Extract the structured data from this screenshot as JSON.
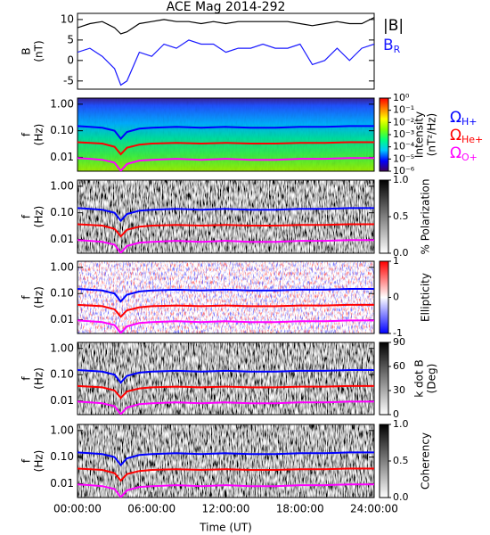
{
  "chart_data": [
    {
      "type": "line",
      "title": "ACE Mag 2014-292",
      "ylabel": [
        "B",
        "(nT)"
      ],
      "xlim": [
        0,
        24
      ],
      "ylim": [
        -7,
        11.5
      ],
      "yticks": [
        -5,
        0,
        5,
        10
      ],
      "x": [
        0,
        1,
        2,
        3,
        3.5,
        4,
        5,
        6,
        7,
        8,
        9,
        10,
        11,
        12,
        13,
        14,
        15,
        16,
        17,
        18,
        19,
        20,
        21,
        22,
        23,
        24
      ],
      "series": [
        {
          "name": "|B|",
          "color": "#000000",
          "values": [
            8,
            9,
            9.5,
            8,
            6.5,
            7,
            9,
            9.5,
            10,
            9.5,
            9.5,
            9,
            9.5,
            9,
            9.5,
            9.5,
            9.5,
            9.5,
            9.5,
            9,
            8.5,
            9,
            9.5,
            9,
            9,
            10.5
          ]
        },
        {
          "name": "B",
          "subscript": "R",
          "color": "#1a1aff",
          "values": [
            2,
            3,
            1,
            -2,
            -6,
            -5,
            2,
            1,
            4,
            3,
            5,
            4,
            4,
            2,
            3,
            3,
            4,
            3,
            3,
            4,
            -1,
            0,
            3,
            0,
            3,
            4
          ]
        }
      ]
    },
    {
      "type": "spectrogram",
      "colormap": "rainbow",
      "ylabel": [
        "f",
        "(Hz)"
      ],
      "log_y": true,
      "xlim": [
        0,
        24
      ],
      "ylim": [
        0.003,
        1.7
      ],
      "yticks": [
        {
          "value": 1,
          "label": "1.00"
        },
        {
          "value": 0.1,
          "label": "0.10"
        },
        {
          "value": 0.01,
          "label": "0.01"
        }
      ],
      "x": [
        0,
        1,
        2,
        3,
        3.5,
        4,
        5,
        6,
        8,
        10,
        12,
        14,
        16,
        18,
        20,
        22,
        24
      ],
      "series": [
        {
          "name": "Ω",
          "subscript": "H+",
          "color": "#0000ff",
          "values": [
            0.15,
            0.14,
            0.13,
            0.1,
            0.05,
            0.09,
            0.12,
            0.13,
            0.14,
            0.13,
            0.14,
            0.13,
            0.13,
            0.14,
            0.14,
            0.15,
            0.15
          ]
        },
        {
          "name": "Ω",
          "subscript": "He+",
          "color": "#ff0000",
          "values": [
            0.037,
            0.035,
            0.033,
            0.025,
            0.013,
            0.023,
            0.03,
            0.033,
            0.035,
            0.033,
            0.035,
            0.033,
            0.033,
            0.035,
            0.035,
            0.037,
            0.037
          ]
        },
        {
          "name": "Ω",
          "subscript": "O+",
          "color": "#ff00ff",
          "values": [
            0.0094,
            0.0088,
            0.0081,
            0.0063,
            0.0031,
            0.0056,
            0.0075,
            0.0081,
            0.0088,
            0.0081,
            0.0088,
            0.0081,
            0.0081,
            0.0088,
            0.0088,
            0.0094,
            0.0094
          ]
        }
      ],
      "colorbar": {
        "label": [
          "Intensity",
          "(nT²/Hz)"
        ],
        "log": true,
        "lim": [
          1e-06,
          1
        ],
        "colors": [
          "#40005a",
          "#0000ff",
          "#00c8ff",
          "#00ff80",
          "#80ff00",
          "#ffff00",
          "#ff8000",
          "#ff0000"
        ],
        "ticks": [
          {
            "value": 1,
            "label": "10⁰"
          },
          {
            "value": 0.1,
            "label": "10⁻¹"
          },
          {
            "value": 0.01,
            "label": "10⁻²"
          },
          {
            "value": 0.001,
            "label": "10⁻³"
          },
          {
            "value": 0.0001,
            "label": "10⁻⁴"
          },
          {
            "value": 1e-05,
            "label": "10⁻⁵"
          },
          {
            "value": 1e-06,
            "label": "10⁻⁶"
          }
        ]
      }
    },
    {
      "type": "spectrogram",
      "colormap": "gray",
      "ylabel": [
        "f",
        "(Hz)"
      ],
      "log_y": true,
      "xlim": [
        0,
        24
      ],
      "ylim": [
        0.003,
        1.7
      ],
      "yticks": [
        {
          "value": 1,
          "label": "1.00"
        },
        {
          "value": 0.1,
          "label": "0.10"
        },
        {
          "value": 0.01,
          "label": "0.01"
        }
      ],
      "x": [
        0,
        1,
        2,
        3,
        3.5,
        4,
        5,
        6,
        8,
        10,
        12,
        14,
        16,
        18,
        20,
        22,
        24
      ],
      "series": [
        {
          "color": "#0000ff",
          "values": [
            0.15,
            0.14,
            0.13,
            0.1,
            0.05,
            0.09,
            0.12,
            0.13,
            0.14,
            0.13,
            0.14,
            0.13,
            0.13,
            0.14,
            0.14,
            0.15,
            0.15
          ]
        },
        {
          "color": "#ff0000",
          "values": [
            0.037,
            0.035,
            0.033,
            0.025,
            0.013,
            0.023,
            0.03,
            0.033,
            0.035,
            0.033,
            0.035,
            0.033,
            0.033,
            0.035,
            0.035,
            0.037,
            0.037
          ]
        },
        {
          "color": "#ff00ff",
          "values": [
            0.0094,
            0.0088,
            0.0081,
            0.0063,
            0.0031,
            0.0056,
            0.0075,
            0.0081,
            0.0088,
            0.0081,
            0.0088,
            0.0081,
            0.0081,
            0.0088,
            0.0088,
            0.0094,
            0.0094
          ]
        }
      ],
      "colorbar": {
        "label": [
          "% Polarization"
        ],
        "lim": [
          0,
          1
        ],
        "colors": [
          "#ffffff",
          "#000000"
        ],
        "ticks": [
          {
            "value": 0,
            "label": "0.0"
          },
          {
            "value": 0.5,
            "label": "0.5"
          },
          {
            "value": 1,
            "label": "1.0"
          }
        ]
      }
    },
    {
      "type": "spectrogram",
      "colormap": "bwr",
      "ylabel": [
        "f",
        "(Hz)"
      ],
      "log_y": true,
      "xlim": [
        0,
        24
      ],
      "ylim": [
        0.003,
        1.7
      ],
      "yticks": [
        {
          "value": 1,
          "label": "1.00"
        },
        {
          "value": 0.1,
          "label": "0.10"
        },
        {
          "value": 0.01,
          "label": "0.01"
        }
      ],
      "x": [
        0,
        1,
        2,
        3,
        3.5,
        4,
        5,
        6,
        8,
        10,
        12,
        14,
        16,
        18,
        20,
        22,
        24
      ],
      "series": [
        {
          "color": "#0000ff",
          "values": [
            0.15,
            0.14,
            0.13,
            0.1,
            0.05,
            0.09,
            0.12,
            0.13,
            0.14,
            0.13,
            0.14,
            0.13,
            0.13,
            0.14,
            0.14,
            0.15,
            0.15
          ]
        },
        {
          "color": "#ff0000",
          "values": [
            0.037,
            0.035,
            0.033,
            0.025,
            0.013,
            0.023,
            0.03,
            0.033,
            0.035,
            0.033,
            0.035,
            0.033,
            0.033,
            0.035,
            0.035,
            0.037,
            0.037
          ]
        },
        {
          "color": "#ff00ff",
          "values": [
            0.0094,
            0.0088,
            0.0081,
            0.0063,
            0.0031,
            0.0056,
            0.0075,
            0.0081,
            0.0088,
            0.0081,
            0.0088,
            0.0081,
            0.0081,
            0.0088,
            0.0088,
            0.0094,
            0.0094
          ]
        }
      ],
      "colorbar": {
        "label": [
          "Ellipticity"
        ],
        "lim": [
          -1,
          1
        ],
        "colors": [
          "#0000ff",
          "#ffffff",
          "#ff0000"
        ],
        "ticks": [
          -1,
          0,
          1
        ]
      }
    },
    {
      "type": "spectrogram",
      "colormap": "gray",
      "ylabel": [
        "f",
        "(Hz)"
      ],
      "log_y": true,
      "xlim": [
        0,
        24
      ],
      "ylim": [
        0.003,
        1.7
      ],
      "yticks": [
        {
          "value": 1,
          "label": "1.00"
        },
        {
          "value": 0.1,
          "label": "0.10"
        },
        {
          "value": 0.01,
          "label": "0.01"
        }
      ],
      "x": [
        0,
        1,
        2,
        3,
        3.5,
        4,
        5,
        6,
        8,
        10,
        12,
        14,
        16,
        18,
        20,
        22,
        24
      ],
      "series": [
        {
          "color": "#0000ff",
          "values": [
            0.15,
            0.14,
            0.13,
            0.1,
            0.05,
            0.09,
            0.12,
            0.13,
            0.14,
            0.13,
            0.14,
            0.13,
            0.13,
            0.14,
            0.14,
            0.15,
            0.15
          ]
        },
        {
          "color": "#ff0000",
          "values": [
            0.037,
            0.035,
            0.033,
            0.025,
            0.013,
            0.023,
            0.03,
            0.033,
            0.035,
            0.033,
            0.035,
            0.033,
            0.033,
            0.035,
            0.035,
            0.037,
            0.037
          ]
        },
        {
          "color": "#ff00ff",
          "values": [
            0.0094,
            0.0088,
            0.0081,
            0.0063,
            0.0031,
            0.0056,
            0.0075,
            0.0081,
            0.0088,
            0.0081,
            0.0088,
            0.0081,
            0.0081,
            0.0088,
            0.0088,
            0.0094,
            0.0094
          ]
        }
      ],
      "colorbar": {
        "label": [
          "k dot B",
          "(Deg)"
        ],
        "lim": [
          0,
          90
        ],
        "colors": [
          "#ffffff",
          "#000000"
        ],
        "ticks": [
          0,
          30,
          60,
          90
        ]
      }
    },
    {
      "type": "spectrogram",
      "colormap": "gray",
      "ylabel": [
        "f",
        "(Hz)"
      ],
      "log_y": true,
      "xlim": [
        0,
        24
      ],
      "ylim": [
        0.003,
        1.7
      ],
      "xlabel": "Time (UT)",
      "xticks": [
        {
          "value": 0,
          "label": "00:00:00"
        },
        {
          "value": 6,
          "label": "06:00:00"
        },
        {
          "value": 12,
          "label": "12:00:00"
        },
        {
          "value": 18,
          "label": "18:00:00"
        },
        {
          "value": 24,
          "label": "24:00:00"
        }
      ],
      "yticks": [
        {
          "value": 1,
          "label": "1.00"
        },
        {
          "value": 0.1,
          "label": "0.10"
        },
        {
          "value": 0.01,
          "label": "0.01"
        }
      ],
      "x": [
        0,
        1,
        2,
        3,
        3.5,
        4,
        5,
        6,
        8,
        10,
        12,
        14,
        16,
        18,
        20,
        22,
        24
      ],
      "series": [
        {
          "color": "#0000ff",
          "values": [
            0.15,
            0.14,
            0.13,
            0.1,
            0.05,
            0.09,
            0.12,
            0.13,
            0.14,
            0.13,
            0.14,
            0.13,
            0.13,
            0.14,
            0.14,
            0.15,
            0.15
          ]
        },
        {
          "color": "#ff0000",
          "values": [
            0.037,
            0.035,
            0.033,
            0.025,
            0.013,
            0.023,
            0.03,
            0.033,
            0.035,
            0.033,
            0.035,
            0.033,
            0.033,
            0.035,
            0.035,
            0.037,
            0.037
          ]
        },
        {
          "color": "#ff00ff",
          "values": [
            0.0094,
            0.0088,
            0.0081,
            0.0063,
            0.0031,
            0.0056,
            0.0075,
            0.0081,
            0.0088,
            0.0081,
            0.0088,
            0.0081,
            0.0081,
            0.0088,
            0.0088,
            0.0094,
            0.0094
          ]
        }
      ],
      "colorbar": {
        "label": [
          "Coherency"
        ],
        "lim": [
          0,
          1
        ],
        "colors": [
          "#ffffff",
          "#000000"
        ],
        "ticks": [
          {
            "value": 0,
            "label": "0.0"
          },
          {
            "value": 0.5,
            "label": "0.5"
          },
          {
            "value": 1,
            "label": "1.0"
          }
        ]
      }
    }
  ]
}
